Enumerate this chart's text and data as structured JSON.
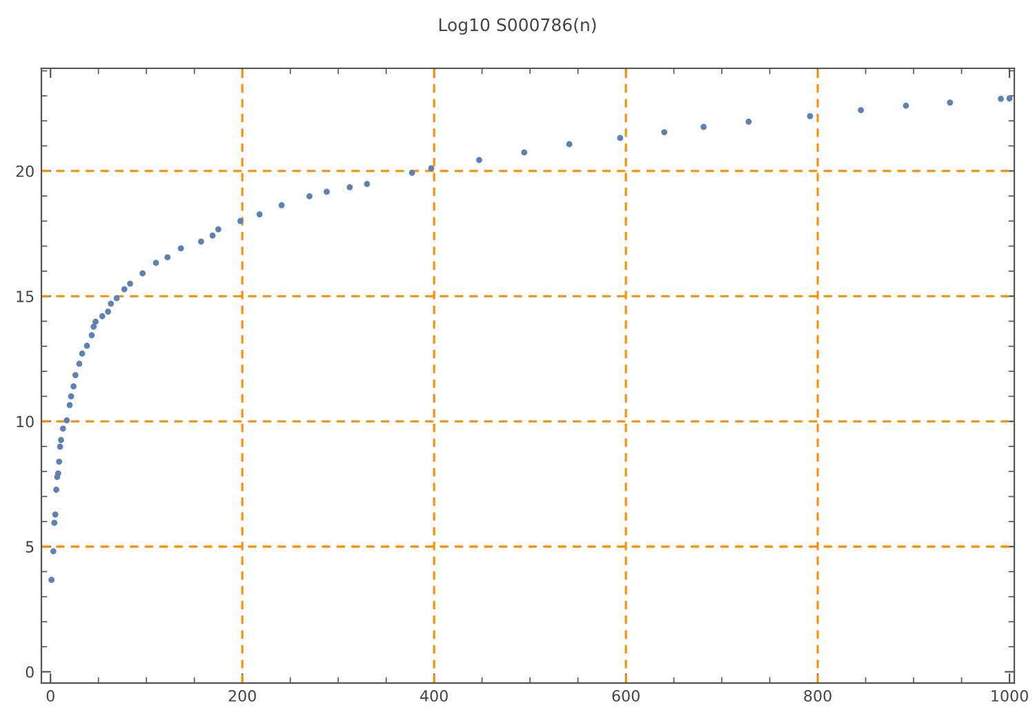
{
  "chart_data": {
    "type": "scatter",
    "title": "Log10 S000786(n)",
    "x": [
      1,
      3,
      4,
      5,
      6,
      7,
      8,
      9,
      10,
      11,
      13,
      17,
      20,
      21.5,
      24,
      26,
      30,
      33,
      38,
      43,
      45,
      47,
      54,
      60,
      63,
      69,
      77,
      83,
      96,
      110,
      122,
      136,
      157,
      169,
      175,
      198,
      218,
      241,
      270,
      288,
      312,
      330,
      377,
      397,
      447,
      494,
      541,
      594,
      640,
      681,
      728,
      792,
      845,
      892,
      938,
      991,
      1000
    ],
    "series": [
      {
        "color": "#5e81b5",
        "values": [
          3.67,
          4.81,
          5.95,
          6.28,
          7.27,
          7.78,
          7.92,
          8.39,
          8.99,
          9.26,
          9.71,
          10.04,
          10.65,
          11.0,
          11.4,
          11.85,
          12.3,
          12.71,
          13.02,
          13.44,
          13.78,
          13.98,
          14.2,
          14.38,
          14.7,
          14.92,
          15.28,
          15.5,
          15.91,
          16.33,
          16.55,
          16.91,
          17.18,
          17.42,
          17.67,
          18.0,
          18.27,
          18.63,
          18.99,
          19.17,
          19.35,
          19.48,
          19.93,
          20.11,
          20.44,
          20.74,
          21.07,
          21.32,
          21.55,
          21.76,
          21.97,
          22.19,
          22.43,
          22.61,
          22.73,
          22.88,
          22.9
        ]
      }
    ],
    "xlim": [
      -9.5,
      1005
    ],
    "ylim": [
      -0.45,
      24.1
    ],
    "xticks": [
      0,
      200,
      400,
      600,
      800,
      1000
    ],
    "yticks": [
      0,
      5,
      10,
      15,
      20
    ],
    "marker": "circle",
    "ref_lines": [
      {
        "axis": "x",
        "value": 200,
        "color": "#ff8c00",
        "line_style": "dashed"
      },
      {
        "axis": "x",
        "value": 400,
        "color": "#ff8c00",
        "line_style": "dashed"
      },
      {
        "axis": "x",
        "value": 600,
        "color": "#ff8c00",
        "line_style": "dashed"
      },
      {
        "axis": "x",
        "value": 800,
        "color": "#ff8c00",
        "line_style": "dashed"
      },
      {
        "axis": "y",
        "value": 5,
        "color": "#ff8c00",
        "line_style": "dashed"
      },
      {
        "axis": "y",
        "value": 10,
        "color": "#ff8c00",
        "line_style": "dashed"
      },
      {
        "axis": "y",
        "value": 15,
        "color": "#ff8c00",
        "line_style": "dashed"
      },
      {
        "axis": "y",
        "value": 20,
        "color": "#ff8c00",
        "line_style": "dashed"
      }
    ]
  }
}
